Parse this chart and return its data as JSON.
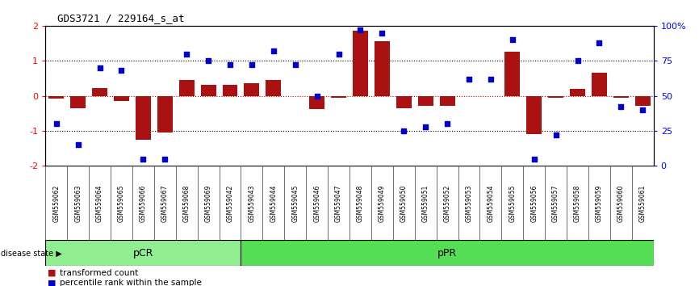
{
  "title": "GDS3721 / 229164_s_at",
  "samples": [
    "GSM559062",
    "GSM559063",
    "GSM559064",
    "GSM559065",
    "GSM559066",
    "GSM559067",
    "GSM559068",
    "GSM559069",
    "GSM559042",
    "GSM559043",
    "GSM559044",
    "GSM559045",
    "GSM559046",
    "GSM559047",
    "GSM559048",
    "GSM559049",
    "GSM559050",
    "GSM559051",
    "GSM559052",
    "GSM559053",
    "GSM559054",
    "GSM559055",
    "GSM559056",
    "GSM559057",
    "GSM559058",
    "GSM559059",
    "GSM559060",
    "GSM559061"
  ],
  "transformed_count": [
    -0.08,
    -0.35,
    0.22,
    -0.15,
    -1.25,
    -1.05,
    0.45,
    0.32,
    0.32,
    0.35,
    0.45,
    0.0,
    -0.38,
    -0.05,
    1.85,
    1.55,
    -0.35,
    -0.28,
    -0.28,
    0.0,
    0.0,
    1.25,
    -1.1,
    -0.05,
    0.2,
    0.65,
    -0.05,
    -0.28
  ],
  "percentile_rank": [
    30,
    15,
    70,
    68,
    5,
    5,
    80,
    75,
    72,
    72,
    82,
    72,
    50,
    80,
    97,
    95,
    25,
    28,
    30,
    62,
    62,
    90,
    5,
    22,
    75,
    88,
    42,
    40
  ],
  "pCR_count": 9,
  "pPR_count": 19,
  "bar_color": "#aa1111",
  "dot_color": "#0000cc",
  "dotted_line_color": "#000000",
  "zero_line_color": "#cc0000",
  "pCR_color": "#90ee90",
  "pPR_color": "#55dd55",
  "bg_color": "#c8c8c8",
  "ylim": [
    -2,
    2
  ],
  "y2lim": [
    0,
    100
  ],
  "yticks": [
    -2,
    -1,
    0,
    1,
    2
  ],
  "y2ticks": [
    0,
    25,
    50,
    75,
    100
  ]
}
